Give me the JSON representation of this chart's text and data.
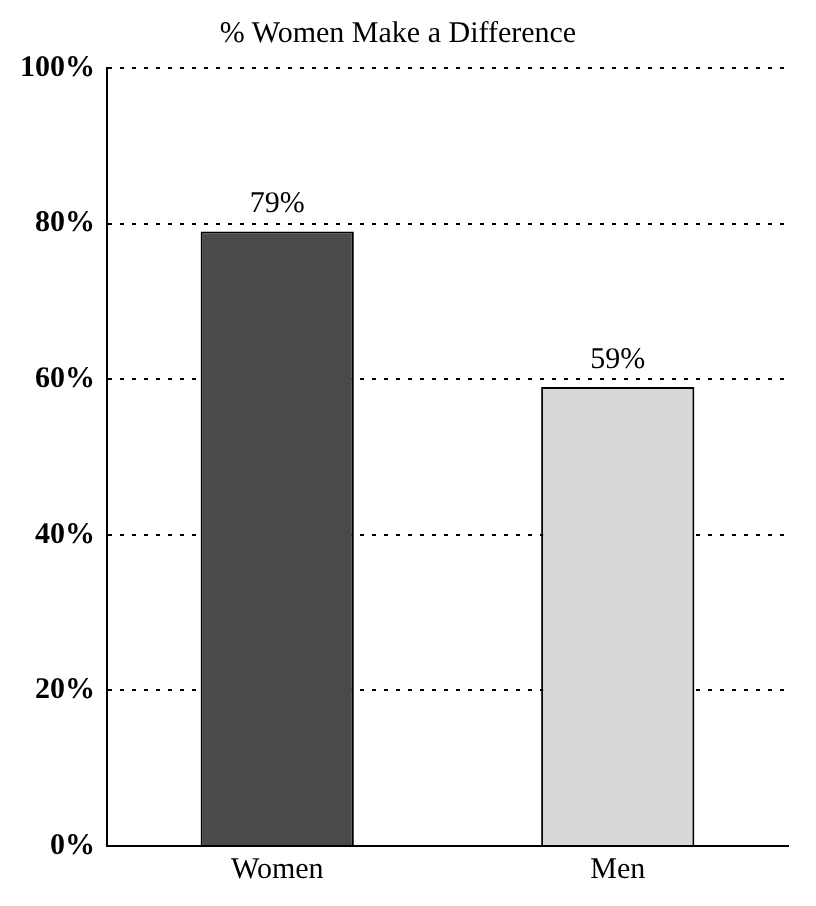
{
  "chart_data": {
    "type": "bar",
    "title": "% Women Make a Difference",
    "categories": [
      "Women",
      "Men"
    ],
    "values": [
      79,
      59
    ],
    "colors": [
      "#4a4a4a",
      "#d8d8d8"
    ],
    "value_labels": [
      "79%",
      "59%"
    ],
    "ylim": [
      0,
      100
    ],
    "yticks": [
      {
        "value": 0,
        "label": "0%"
      },
      {
        "value": 20,
        "label": "20%"
      },
      {
        "value": 40,
        "label": "40%"
      },
      {
        "value": 60,
        "label": "60%"
      },
      {
        "value": 80,
        "label": "80%"
      },
      {
        "value": 100,
        "label": "100%"
      }
    ],
    "grid": "y",
    "legend": false
  }
}
